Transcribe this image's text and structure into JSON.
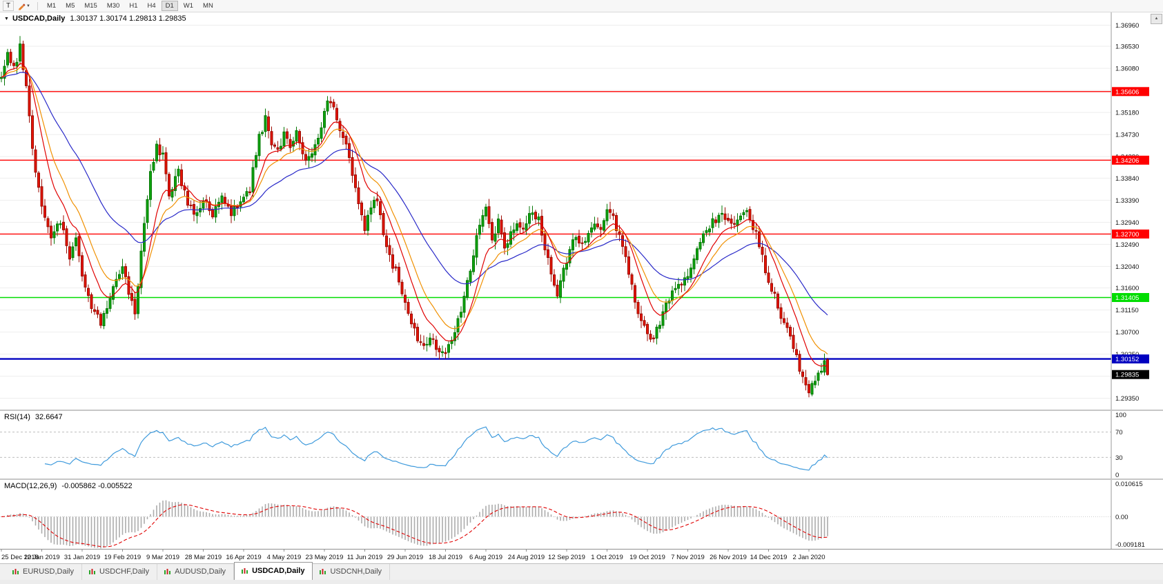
{
  "toolbar": {
    "text_tool": "T",
    "timeframes": [
      "M1",
      "M5",
      "M15",
      "M30",
      "H1",
      "H4",
      "D1",
      "W1",
      "MN"
    ],
    "active_timeframe": "D1"
  },
  "chart": {
    "symbol_title": "USDCAD,Daily",
    "ohlc_text": "1.30137 1.30174 1.29813 1.29835",
    "price_ticks": [
      "1.36960",
      "1.36530",
      "1.36080",
      "1.35630",
      "1.35180",
      "1.34730",
      "1.34280",
      "1.33840",
      "1.33390",
      "1.32940",
      "1.32490",
      "1.32040",
      "1.31600",
      "1.31150",
      "1.30700",
      "1.30250",
      "1.29800",
      "1.29350"
    ],
    "hlines": [
      {
        "value": 1.35606,
        "label": "1.35606",
        "color": "#FF0000",
        "width": 1.4
      },
      {
        "value": 1.34206,
        "label": "1.34206",
        "color": "#FF0000",
        "width": 1.4
      },
      {
        "value": 1.327,
        "label": "1.32700",
        "color": "#FF0000",
        "width": 1.4
      },
      {
        "value": 1.31405,
        "label": "1.31405",
        "color": "#00DD00",
        "width": 1.6
      },
      {
        "value": 1.30152,
        "label": "1.30152",
        "color": "#0000C0",
        "width": 2.4
      }
    ],
    "current_price": {
      "value": 1.29835,
      "label": "1.29835",
      "color": "#000000"
    },
    "dates": [
      "25 Dec 2018",
      "12 Jan 2019",
      "31 Jan 2019",
      "19 Feb 2019",
      "9 Mar 2019",
      "28 Mar 2019",
      "16 Apr 2019",
      "4 May 2019",
      "23 May 2019",
      "11 Jun 2019",
      "29 Jun 2019",
      "18 Jul 2019",
      "6 Aug 2019",
      "24 Aug 2019",
      "12 Sep 2019",
      "1 Oct 2019",
      "19 Oct 2019",
      "7 Nov 2019",
      "26 Nov 2019",
      "14 Dec 2019",
      "2 Jan 2020"
    ]
  },
  "rsi": {
    "label": "RSI(14)",
    "value": "32.6647",
    "axis_ticks": [
      "100",
      "70",
      "30",
      "0"
    ],
    "levels": [
      70,
      30
    ]
  },
  "macd": {
    "label": "MACD(12,26,9)",
    "values": "-0.005862 -0.005522",
    "axis_ticks": [
      "0.010615",
      "0.00",
      "-0.009181"
    ]
  },
  "tabs": [
    {
      "label": "EURUSD,Daily",
      "active": false
    },
    {
      "label": "USDCHF,Daily",
      "active": false
    },
    {
      "label": "AUDUSD,Daily",
      "active": false
    },
    {
      "label": "USDCAD,Daily",
      "active": true
    },
    {
      "label": "USDCNH,Daily",
      "active": false
    }
  ],
  "chart_data": {
    "type": "candlestick",
    "symbol": "USDCAD",
    "timeframe": "Daily",
    "bars": 267,
    "price_range": [
      1.2912,
      1.3722
    ],
    "last_bar": {
      "open": 1.30137,
      "high": 1.30174,
      "low": 1.29813,
      "close": 1.29835
    },
    "close_anchors": [
      [
        0,
        1.3585
      ],
      [
        2,
        1.3642
      ],
      [
        4,
        1.3605
      ],
      [
        6,
        1.365
      ],
      [
        8,
        1.3572
      ],
      [
        10,
        1.3438
      ],
      [
        13,
        1.3328
      ],
      [
        16,
        1.3258
      ],
      [
        19,
        1.3296
      ],
      [
        22,
        1.3226
      ],
      [
        24,
        1.3268
      ],
      [
        26,
        1.3192
      ],
      [
        29,
        1.3126
      ],
      [
        32,
        1.3086
      ],
      [
        35,
        1.3132
      ],
      [
        37,
        1.318
      ],
      [
        39,
        1.3208
      ],
      [
        41,
        1.3146
      ],
      [
        43,
        1.3112
      ],
      [
        45,
        1.3232
      ],
      [
        48,
        1.3392
      ],
      [
        50,
        1.3446
      ],
      [
        52,
        1.3428
      ],
      [
        54,
        1.3346
      ],
      [
        57,
        1.3396
      ],
      [
        60,
        1.3332
      ],
      [
        63,
        1.3306
      ],
      [
        65,
        1.334
      ],
      [
        68,
        1.3312
      ],
      [
        71,
        1.3356
      ],
      [
        74,
        1.3312
      ],
      [
        77,
        1.333
      ],
      [
        80,
        1.3362
      ],
      [
        83,
        1.3466
      ],
      [
        85,
        1.3506
      ],
      [
        87,
        1.3452
      ],
      [
        89,
        1.3436
      ],
      [
        91,
        1.347
      ],
      [
        93,
        1.3446
      ],
      [
        95,
        1.3482
      ],
      [
        97,
        1.3436
      ],
      [
        99,
        1.342
      ],
      [
        101,
        1.3446
      ],
      [
        103,
        1.3492
      ],
      [
        105,
        1.3546
      ],
      [
        107,
        1.3532
      ],
      [
        109,
        1.3482
      ],
      [
        111,
        1.3446
      ],
      [
        113,
        1.3392
      ],
      [
        115,
        1.3332
      ],
      [
        117,
        1.3286
      ],
      [
        119,
        1.3322
      ],
      [
        121,
        1.3342
      ],
      [
        123,
        1.3276
      ],
      [
        125,
        1.3222
      ],
      [
        127,
        1.3192
      ],
      [
        130,
        1.3136
      ],
      [
        132,
        1.3092
      ],
      [
        134,
        1.3052
      ],
      [
        136,
        1.3042
      ],
      [
        138,
        1.3066
      ],
      [
        140,
        1.3042
      ],
      [
        143,
        1.3026
      ],
      [
        145,
        1.3062
      ],
      [
        147,
        1.3092
      ],
      [
        149,
        1.3142
      ],
      [
        151,
        1.3202
      ],
      [
        153,
        1.3262
      ],
      [
        155,
        1.3316
      ],
      [
        156,
        1.3332
      ],
      [
        158,
        1.3256
      ],
      [
        160,
        1.3292
      ],
      [
        162,
        1.3242
      ],
      [
        164,
        1.3272
      ],
      [
        166,
        1.3292
      ],
      [
        168,
        1.3276
      ],
      [
        171,
        1.3322
      ],
      [
        173,
        1.3296
      ],
      [
        175,
        1.3242
      ],
      [
        177,
        1.3196
      ],
      [
        179,
        1.3152
      ],
      [
        181,
        1.3192
      ],
      [
        183,
        1.3238
      ],
      [
        185,
        1.3272
      ],
      [
        187,
        1.3246
      ],
      [
        189,
        1.3272
      ],
      [
        191,
        1.3296
      ],
      [
        193,
        1.3272
      ],
      [
        195,
        1.3322
      ],
      [
        197,
        1.3306
      ],
      [
        199,
        1.3262
      ],
      [
        201,
        1.3222
      ],
      [
        203,
        1.3162
      ],
      [
        205,
        1.3112
      ],
      [
        208,
        1.3066
      ],
      [
        210,
        1.3056
      ],
      [
        212,
        1.3092
      ],
      [
        214,
        1.3122
      ],
      [
        216,
        1.3152
      ],
      [
        218,
        1.3166
      ],
      [
        221,
        1.3176
      ],
      [
        223,
        1.3216
      ],
      [
        225,
        1.3252
      ],
      [
        227,
        1.3276
      ],
      [
        229,
        1.3296
      ],
      [
        231,
        1.3306
      ],
      [
        234,
        1.33
      ],
      [
        236,
        1.3282
      ],
      [
        238,
        1.3306
      ],
      [
        240,
        1.3316
      ],
      [
        242,
        1.3282
      ],
      [
        244,
        1.3252
      ],
      [
        247,
        1.3166
      ],
      [
        249,
        1.3142
      ],
      [
        251,
        1.3106
      ],
      [
        253,
        1.3082
      ],
      [
        255,
        1.3042
      ],
      [
        257,
        1.2996
      ],
      [
        259,
        1.2962
      ],
      [
        260,
        1.295
      ],
      [
        262,
        1.2968
      ],
      [
        264,
        1.2999
      ],
      [
        265,
        1.30137
      ],
      [
        266,
        1.29835
      ]
    ],
    "moving_averages": [
      {
        "name": "fast",
        "period": 10,
        "color": "#E00000"
      },
      {
        "name": "medium",
        "period": 16,
        "color": "#F09000"
      },
      {
        "name": "slow",
        "period": 40,
        "color": "#2828C8"
      }
    ],
    "candle_colors": {
      "up_fill": "#0FA30F",
      "up_stroke": "#067806",
      "down_fill": "#E51400",
      "down_stroke": "#9C0A00"
    },
    "rsi": {
      "period": 14,
      "color": "#3E9ADC",
      "range": [
        0,
        100
      ],
      "last": 32.6647
    },
    "macd": {
      "fast": 12,
      "slow": 26,
      "signal": 9,
      "range": [
        -0.009181,
        0.010615
      ],
      "hist_color": "#ACACAC",
      "signal_color": "#E00000",
      "last_main": -0.005862,
      "last_signal": -0.005522
    }
  }
}
